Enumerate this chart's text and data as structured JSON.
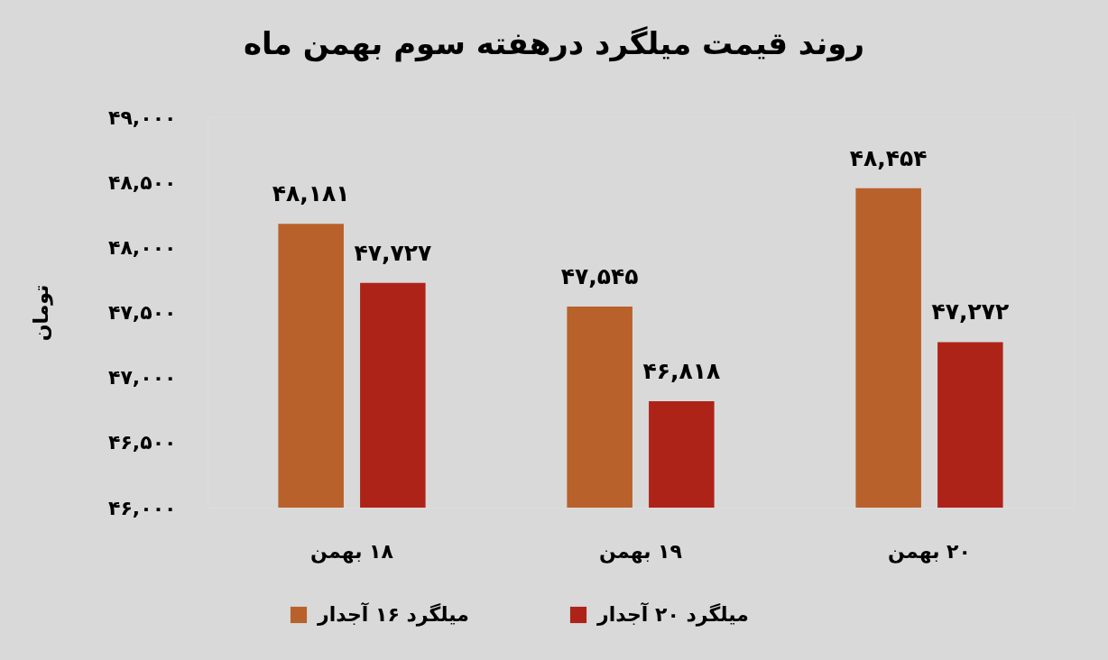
{
  "chart_data": {
    "type": "bar",
    "title": "روند قیمت میلگرد درهفته سوم بهمن ماه",
    "ylabel": "تومان",
    "categories": [
      "۱۸ بهمن",
      "۱۹ بهمن",
      "۲۰ بهمن"
    ],
    "series": [
      {
        "name": "میلگرد ۱۶ آجدار",
        "color": "#b8612b",
        "values": [
          48181,
          47545,
          48454
        ],
        "value_labels": [
          "۴۸,۱۸۱",
          "۴۷,۵۴۵",
          "۴۸,۴۵۴"
        ]
      },
      {
        "name": "میلگرد ۲۰ آجدار",
        "color": "#ae2318",
        "values": [
          47727,
          46818,
          47272
        ],
        "value_labels": [
          "۴۷,۷۲۷",
          "۴۶,۸۱۸",
          "۴۷,۲۷۲"
        ]
      }
    ],
    "ylim": [
      46000,
      49000
    ],
    "yticks": [
      {
        "value": 46000,
        "label": "۴۶,۰۰۰"
      },
      {
        "value": 46500,
        "label": "۴۶,۵۰۰"
      },
      {
        "value": 47000,
        "label": "۴۷,۰۰۰"
      },
      {
        "value": 47500,
        "label": "۴۷,۵۰۰"
      },
      {
        "value": 48000,
        "label": "۴۸,۰۰۰"
      },
      {
        "value": 48500,
        "label": "۴۸,۵۰۰"
      },
      {
        "value": 49000,
        "label": "۴۹,۰۰۰"
      }
    ],
    "legend": "bottom"
  }
}
